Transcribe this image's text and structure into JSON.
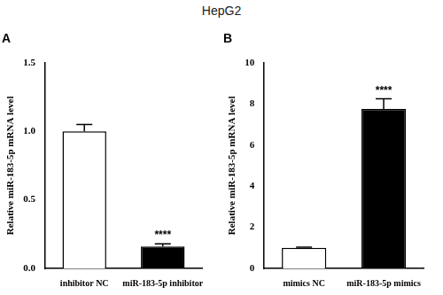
{
  "title": "HepG2",
  "chart_data": [
    {
      "type": "bar",
      "title": "A",
      "y_label": "Relative miR-183-5p mRNA level",
      "categories": [
        "inhibitor NC",
        "miR-183-5p inhibitor"
      ],
      "values": [
        1.0,
        0.16
      ],
      "errors": [
        0.05,
        0.02
      ],
      "colors": [
        "#ffffff",
        "#000000"
      ],
      "ylim": [
        0,
        1.5
      ],
      "yticks": [
        {
          "value": 0,
          "label": "0.0"
        },
        {
          "value": 0.5,
          "label": "0.5"
        },
        {
          "value": 1,
          "label": "1.0"
        },
        {
          "value": 1.5,
          "label": "1.5"
        }
      ],
      "grid": false,
      "annotations": [
        {
          "text": "****",
          "x": "miR-183-5p inhibitor"
        }
      ]
    },
    {
      "type": "bar",
      "title": "B",
      "y_label": "Relative miR-183-5p mRNA level",
      "categories": [
        "mimics NC",
        "miR-183-5p mimics"
      ],
      "values": [
        1.0,
        7.75
      ],
      "errors": [
        0.03,
        0.5
      ],
      "colors": [
        "#ffffff",
        "#000000"
      ],
      "ylim": [
        0,
        10
      ],
      "yticks": [
        0,
        2,
        4,
        6,
        8,
        10
      ],
      "grid": false,
      "annotations": [
        {
          "text": "****",
          "x": "miR-183-5p mimics"
        }
      ]
    }
  ]
}
